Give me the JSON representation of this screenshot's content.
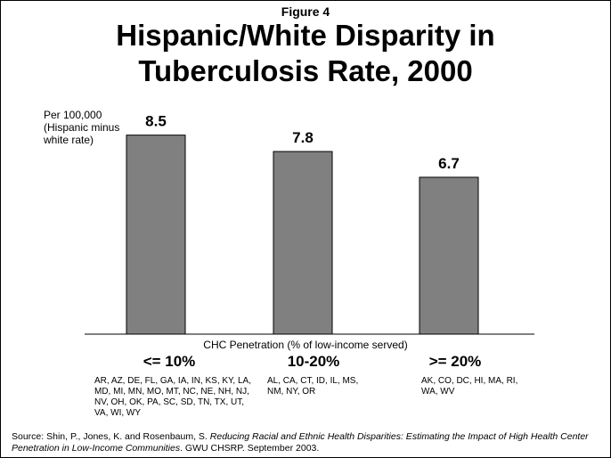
{
  "figure_label": "Figure 4",
  "title_line1": "Hispanic/White Disparity in",
  "title_line2": "Tuberculosis Rate, 2000",
  "source": {
    "prefix": "Source: Shin, P., Jones, K. and Rosenbaum, S. ",
    "italic": "Reducing Racial and Ethnic Health Disparities:  Estimating the Impact of High Health Center Penetration in Low-Income Communities",
    "suffix": ". GWU CHSRP.  September 2003."
  },
  "colors": {
    "bar": "#808080",
    "bar_stroke": "#000000",
    "text": "#000000"
  },
  "chart_data": {
    "type": "bar",
    "title": "Hispanic/White Disparity in Tuberculosis Rate, 2000",
    "ylabel": "Per 100,000 (Hispanic minus white rate)",
    "xlabel": "CHC Penetration (% of low-income served)",
    "categories": [
      "<= 10%",
      "10-20%",
      ">= 20%"
    ],
    "values": [
      8.5,
      7.8,
      6.7
    ],
    "data_labels": [
      "8.5",
      "7.8",
      "6.7"
    ],
    "ylim": [
      0,
      9.4
    ],
    "grid": false,
    "category_notes": [
      "AR, AZ, DE, FL, GA, IA, IN, KS, KY, LA, MD, MI, MN, MO, MT, NC, NE, NH, NJ, NV, OH, OK, PA, SC, SD, TN, TX, UT, VA, WI, WY",
      "AL, CA, CT, ID, IL, MS, NM, NY, OR",
      "AK, CO, DC, HI, MA, RI, WA, WV"
    ]
  }
}
